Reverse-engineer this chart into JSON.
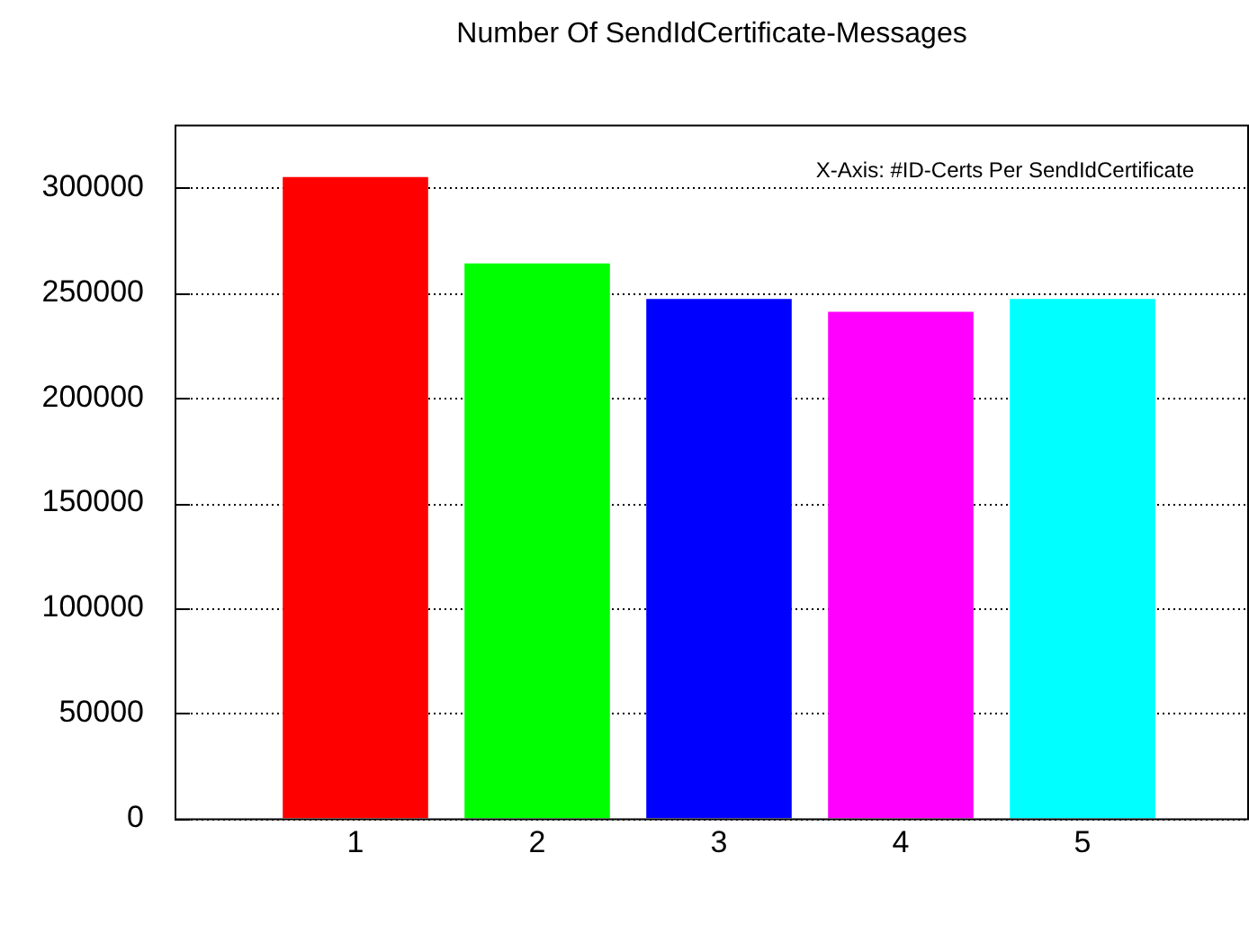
{
  "chart_data": {
    "type": "bar",
    "title": "Number Of SendIdCertificate-Messages",
    "annotations": [
      "X-Axis: #ID-Certs Per SendIdCertificate"
    ],
    "categories": [
      "1",
      "2",
      "3",
      "4",
      "5"
    ],
    "values": [
      305000,
      264000,
      247000,
      241000,
      247000
    ],
    "colors": [
      "#ff0000",
      "#00ff00",
      "#0000ff",
      "#ff00ff",
      "#00ffff"
    ],
    "ylim": [
      0,
      330000
    ],
    "yticks": [
      0,
      50000,
      100000,
      150000,
      200000,
      250000,
      300000
    ],
    "grid": "y",
    "legend": false
  }
}
